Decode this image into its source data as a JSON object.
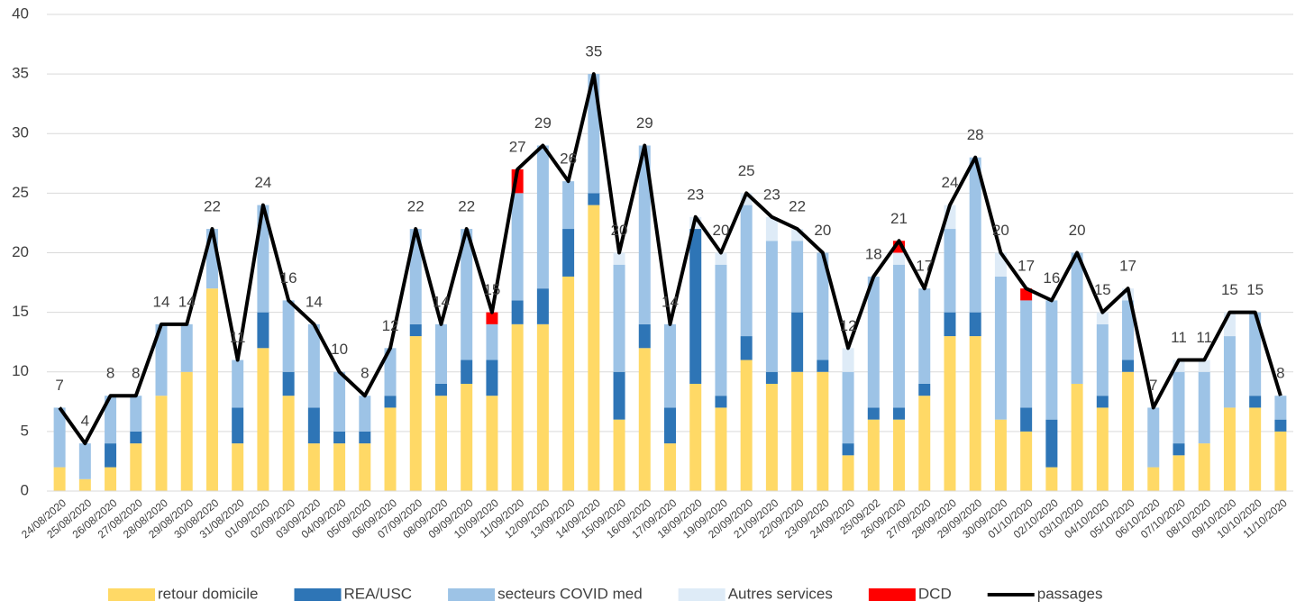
{
  "chart_data": {
    "type": "bar",
    "stacked": true,
    "categories": [
      "24/08/2020",
      "25/08/2020",
      "26/08/2020",
      "27/08/2020",
      "28/08/2020",
      "29/08/2020",
      "30/08/2020",
      "31/08/2020",
      "01/09/2020",
      "02/09/2020",
      "03/09/2020",
      "04/09/2020",
      "05/09/2020",
      "06/09/2020",
      "07/09/2020",
      "08/09/2020",
      "09/09/2020",
      "10/09/2020",
      "11/09/2020",
      "12/09/2020",
      "13/09/2020",
      "14/09/2020",
      "15/09/2020",
      "16/09/2020",
      "17/09/2020",
      "18/09/2020",
      "19/09/2020",
      "20/09/2020",
      "21/09/2020",
      "22/09/2020",
      "23/09/2020",
      "24/09/2020",
      "25/09/202",
      "26/09/2020",
      "27/09/2020",
      "28/09/2020",
      "29/09/2020",
      "30/09/2020",
      "01/10/2020",
      "02/10/2020",
      "03/10/2020",
      "04/10/2020",
      "05/10/2020",
      "06/10/2020",
      "07/10/2020",
      "08/10/2020",
      "09/10/2020",
      "10/10/2020",
      "11/10/2020"
    ],
    "series": [
      {
        "name": "retour domicile",
        "color": "#ffd966",
        "values": [
          2,
          1,
          2,
          4,
          8,
          10,
          17,
          4,
          12,
          8,
          4,
          4,
          4,
          7,
          13,
          8,
          9,
          8,
          14,
          14,
          18,
          24,
          6,
          12,
          4,
          9,
          7,
          11,
          9,
          10,
          10,
          3,
          6,
          6,
          8,
          13,
          13,
          6,
          5,
          2,
          9,
          7,
          10,
          2,
          3,
          4,
          7,
          7,
          5
        ]
      },
      {
        "name": "REA/USC",
        "color": "#2e75b6",
        "values": [
          0,
          0,
          2,
          1,
          0,
          0,
          0,
          3,
          3,
          2,
          3,
          1,
          1,
          1,
          1,
          1,
          2,
          3,
          2,
          3,
          4,
          1,
          4,
          2,
          3,
          13,
          1,
          2,
          1,
          5,
          1,
          1,
          1,
          1,
          1,
          2,
          2,
          0,
          2,
          4,
          0,
          1,
          1,
          0,
          1,
          0,
          0,
          1,
          1
        ]
      },
      {
        "name": "secteurs COVID med",
        "color": "#9dc3e6",
        "values": [
          5,
          3,
          4,
          3,
          6,
          4,
          5,
          4,
          9,
          6,
          7,
          5,
          3,
          4,
          8,
          5,
          11,
          3,
          9,
          12,
          4,
          10,
          9,
          15,
          7,
          0,
          11,
          11,
          11,
          6,
          9,
          6,
          11,
          12,
          8,
          7,
          13,
          12,
          9,
          10,
          11,
          6,
          5,
          5,
          6,
          6,
          6,
          7,
          2
        ]
      },
      {
        "name": "Autres services",
        "color": "#deebf7",
        "values": [
          0,
          0,
          0,
          0,
          0,
          0,
          0,
          0,
          0,
          0,
          0,
          0,
          0,
          0,
          0,
          0,
          0,
          0,
          0,
          0,
          0,
          0,
          1,
          0,
          0,
          1,
          1,
          1,
          2,
          1,
          0,
          2,
          0,
          1,
          0,
          2,
          0,
          2,
          0,
          0,
          0,
          1,
          1,
          0,
          1,
          1,
          2,
          0,
          0
        ]
      },
      {
        "name": "DCD",
        "color": "#ff0000",
        "values": [
          0,
          0,
          0,
          0,
          0,
          0,
          0,
          0,
          0,
          0,
          0,
          0,
          0,
          0,
          0,
          0,
          0,
          1,
          2,
          0,
          0,
          0,
          0,
          0,
          0,
          0,
          0,
          0,
          0,
          0,
          0,
          0,
          0,
          1,
          0,
          0,
          0,
          0,
          1,
          0,
          0,
          0,
          0,
          0,
          0,
          0,
          0,
          0,
          0
        ]
      },
      {
        "name": "passages",
        "color": "#000000",
        "type": "line",
        "values": [
          7,
          4,
          8,
          8,
          14,
          14,
          22,
          11,
          24,
          16,
          14,
          10,
          8,
          12,
          22,
          14,
          22,
          15,
          27,
          29,
          26,
          35,
          20,
          29,
          14,
          23,
          20,
          25,
          23,
          22,
          20,
          12,
          18,
          21,
          17,
          24,
          28,
          20,
          17,
          16,
          20,
          15,
          17,
          7,
          11,
          11,
          15,
          15,
          8
        ]
      }
    ],
    "ylim": [
      0,
      40
    ],
    "yticks": [
      0,
      5,
      10,
      15,
      20,
      25,
      30,
      35,
      40
    ],
    "grid": true,
    "legend": "bottom"
  }
}
